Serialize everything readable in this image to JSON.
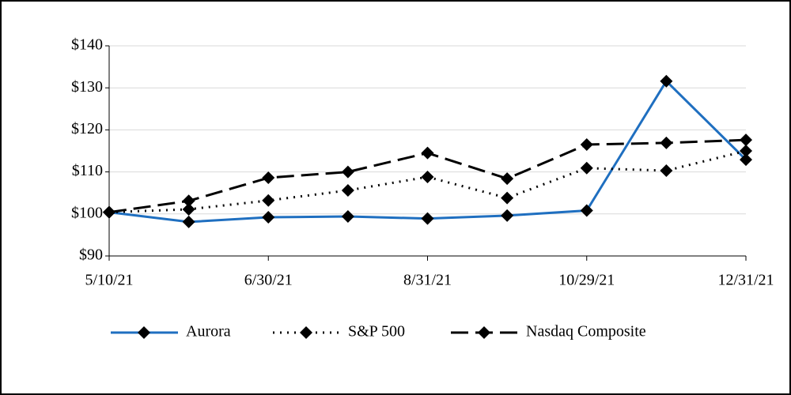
{
  "chart_data": {
    "type": "line",
    "categories": [
      "5/10/21",
      null,
      "6/30/21",
      null,
      "8/31/21",
      null,
      "10/29/21",
      null,
      "12/31/21"
    ],
    "series": [
      {
        "name": "Aurora",
        "color": "#1f6fc0",
        "dash": "solid",
        "values": [
          100.4,
          98.1,
          99.2,
          99.4,
          98.9,
          99.6,
          100.8,
          131.6,
          112.9
        ]
      },
      {
        "name": "S&P 500",
        "color": "#000000",
        "dash": "dotted",
        "values": [
          100.4,
          101.1,
          103.2,
          105.6,
          108.8,
          103.8,
          110.9,
          110.3,
          115.0
        ]
      },
      {
        "name": "Nasdaq Composite",
        "color": "#000000",
        "dash": "dashed",
        "values": [
          100.4,
          103.1,
          108.6,
          110.0,
          114.5,
          108.4,
          116.5,
          116.9,
          117.6
        ]
      }
    ],
    "ylim": [
      90,
      140
    ],
    "yticks": [
      {
        "value": 90,
        "label": "$90"
      },
      {
        "value": 100,
        "label": "$100"
      },
      {
        "value": 110,
        "label": "$110"
      },
      {
        "value": 120,
        "label": "$120"
      },
      {
        "value": 130,
        "label": "$130"
      },
      {
        "value": 140,
        "label": "$140"
      }
    ],
    "grid": true,
    "legend": "bottom"
  }
}
